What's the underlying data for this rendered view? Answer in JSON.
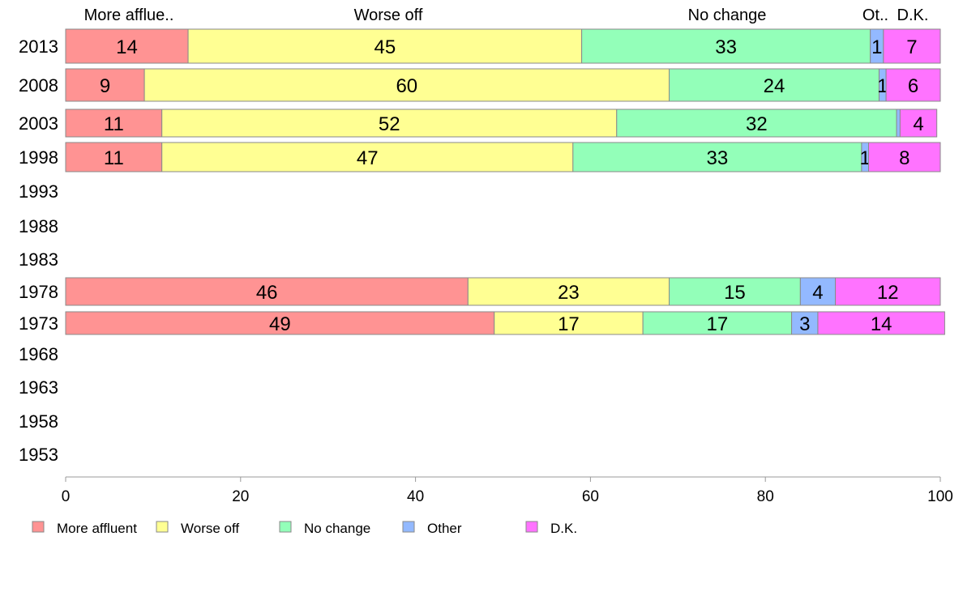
{
  "chart_data": {
    "type": "bar",
    "orientation": "horizontal",
    "stacked": true,
    "categories": [
      "2013",
      "2008",
      "2003",
      "1998",
      "1993",
      "1988",
      "1983",
      "1978",
      "1973",
      "1968",
      "1963",
      "1958",
      "1953"
    ],
    "series": [
      {
        "name": "More affluent",
        "header": "More afflue..",
        "color": "#ff9393",
        "values": [
          14,
          9,
          11,
          11,
          null,
          null,
          null,
          46,
          49,
          null,
          null,
          null,
          null
        ],
        "labels": [
          "14",
          "9",
          "11",
          "11",
          "",
          "",
          "",
          "46",
          "49",
          "",
          "",
          "",
          ""
        ]
      },
      {
        "name": "Worse off",
        "header": "Worse off",
        "color": "#ffff93",
        "values": [
          45,
          60,
          52,
          47,
          null,
          null,
          null,
          23,
          17,
          null,
          null,
          null,
          null
        ],
        "labels": [
          "45",
          "60",
          "52",
          "47",
          "",
          "",
          "",
          "23",
          "17",
          "",
          "",
          "",
          ""
        ]
      },
      {
        "name": "No change",
        "header": "No change",
        "color": "#93ffb9",
        "values": [
          33,
          24,
          32,
          33,
          null,
          null,
          null,
          15,
          17,
          null,
          null,
          null,
          null
        ],
        "labels": [
          "33",
          "24",
          "32",
          "33",
          "",
          "",
          "",
          "15",
          "17",
          "",
          "",
          "",
          ""
        ]
      },
      {
        "name": "Other",
        "header": "Ot..",
        "color": "#93b9ff",
        "values": [
          1.5,
          0.8,
          0.4,
          0.8,
          null,
          null,
          null,
          4,
          3,
          null,
          null,
          null,
          null
        ],
        "labels": [
          "1",
          "1",
          "",
          "1",
          "",
          "",
          "",
          "4",
          "3",
          "",
          "",
          "",
          ""
        ]
      },
      {
        "name": "D.K.",
        "header": "D.K.",
        "color": "#ff73ff",
        "values": [
          6.5,
          6.2,
          4.2,
          8.2,
          null,
          null,
          null,
          12,
          14.5,
          null,
          null,
          null,
          null
        ],
        "labels": [
          "7",
          "6",
          "4",
          "8",
          "",
          "",
          "",
          "12",
          "14",
          "",
          "",
          "",
          ""
        ]
      }
    ],
    "xlim": [
      0,
      100
    ],
    "xticks": [
      "0",
      "20",
      "40",
      "60",
      "80",
      "100"
    ],
    "title": "",
    "xlabel": "",
    "ylabel": "",
    "legend_position": "bottom",
    "grid": false
  }
}
